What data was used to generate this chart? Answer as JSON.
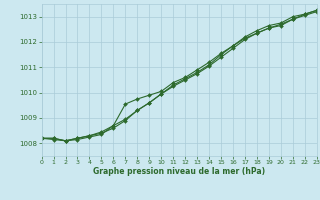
{
  "title": "Graphe pression niveau de la mer (hPa)",
  "bg_color": "#cce8f0",
  "grid_color": "#aaccd8",
  "line_color": "#2d6a2d",
  "x_min": 0,
  "x_max": 23,
  "y_min": 1007.5,
  "y_max": 1013.5,
  "y_ticks": [
    1008,
    1009,
    1010,
    1011,
    1012,
    1013
  ],
  "x_ticks": [
    0,
    1,
    2,
    3,
    4,
    5,
    6,
    7,
    8,
    9,
    10,
    11,
    12,
    13,
    14,
    15,
    16,
    17,
    18,
    19,
    20,
    21,
    22,
    23
  ],
  "line1": {
    "x": [
      0,
      1,
      2,
      3,
      4,
      5,
      6,
      7,
      8,
      9,
      10,
      11,
      12,
      13,
      14,
      15,
      16,
      17,
      18,
      19,
      20,
      21,
      22,
      23
    ],
    "y": [
      1008.2,
      1008.2,
      1008.1,
      1008.2,
      1008.3,
      1008.4,
      1008.6,
      1008.9,
      1009.3,
      1009.6,
      1009.95,
      1010.25,
      1010.5,
      1010.75,
      1011.05,
      1011.4,
      1011.75,
      1012.1,
      1012.35,
      1012.55,
      1012.7,
      1012.9,
      1013.05,
      1013.2
    ]
  },
  "line2": {
    "x": [
      0,
      1,
      2,
      3,
      4,
      5,
      6,
      7,
      8,
      9,
      10,
      11,
      12,
      13,
      14,
      15,
      16,
      17,
      18,
      19,
      20,
      21,
      22,
      23
    ],
    "y": [
      1008.2,
      1008.15,
      1008.1,
      1008.15,
      1008.25,
      1008.35,
      1008.7,
      1009.55,
      1009.75,
      1009.9,
      1010.05,
      1010.4,
      1010.6,
      1010.9,
      1011.2,
      1011.55,
      1011.85,
      1012.15,
      1012.35,
      1012.55,
      1012.65,
      1012.9,
      1013.1,
      1013.25
    ]
  },
  "line3": {
    "x": [
      0,
      1,
      2,
      3,
      4,
      5,
      6,
      7,
      8,
      9,
      10,
      11,
      12,
      13,
      14,
      15,
      16,
      17,
      18,
      19,
      20,
      21,
      22,
      23
    ],
    "y": [
      1008.2,
      1008.2,
      1008.1,
      1008.2,
      1008.3,
      1008.45,
      1008.7,
      1008.95,
      1009.3,
      1009.6,
      1009.95,
      1010.3,
      1010.55,
      1010.8,
      1011.1,
      1011.5,
      1011.85,
      1012.2,
      1012.45,
      1012.65,
      1012.75,
      1013.0,
      1013.1,
      1013.25
    ]
  }
}
